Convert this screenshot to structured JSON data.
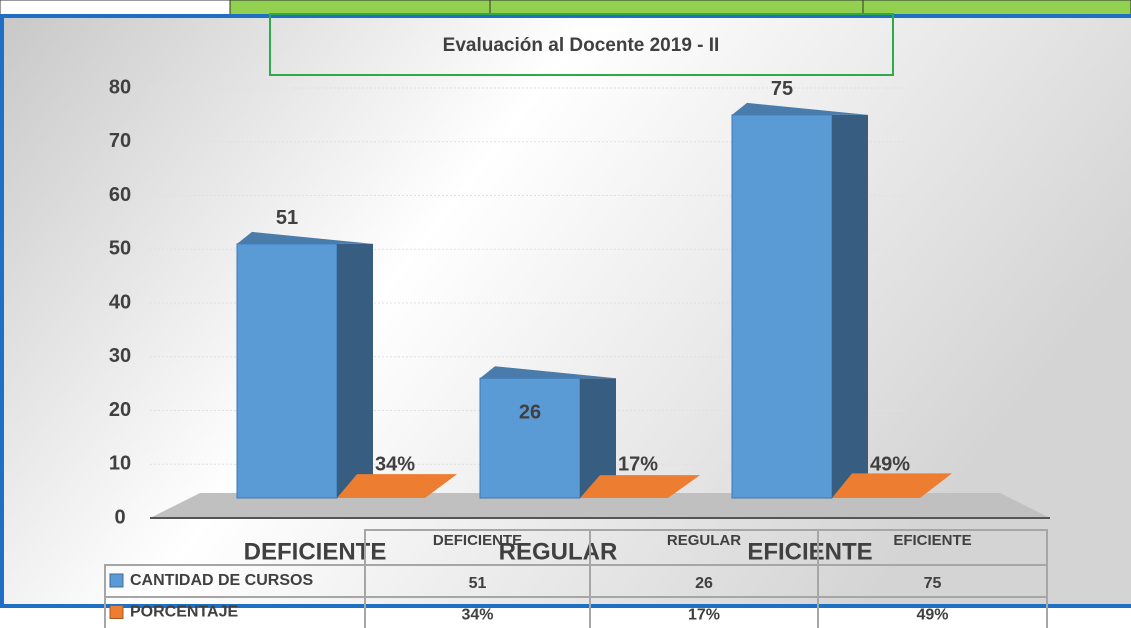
{
  "chart_data": {
    "type": "bar",
    "title": "Evaluación al Docente 2019 - II",
    "categories": [
      "DEFICIENTE",
      "REGULAR",
      "EFICIENTE"
    ],
    "series": [
      {
        "name": "CANTIDAD DE CURSOS",
        "color": "#5b9bd5",
        "values": [
          51,
          26,
          75
        ]
      },
      {
        "name": "PORCENTAJE",
        "color": "#ed7d31",
        "values": [
          0.34,
          0.17,
          0.49
        ],
        "value_labels": [
          "34%",
          "17%",
          "49%"
        ]
      }
    ],
    "ylim": [
      0,
      80
    ],
    "yticks": [
      0,
      10,
      20,
      30,
      40,
      50,
      60,
      70,
      80
    ],
    "grid": true
  }
}
